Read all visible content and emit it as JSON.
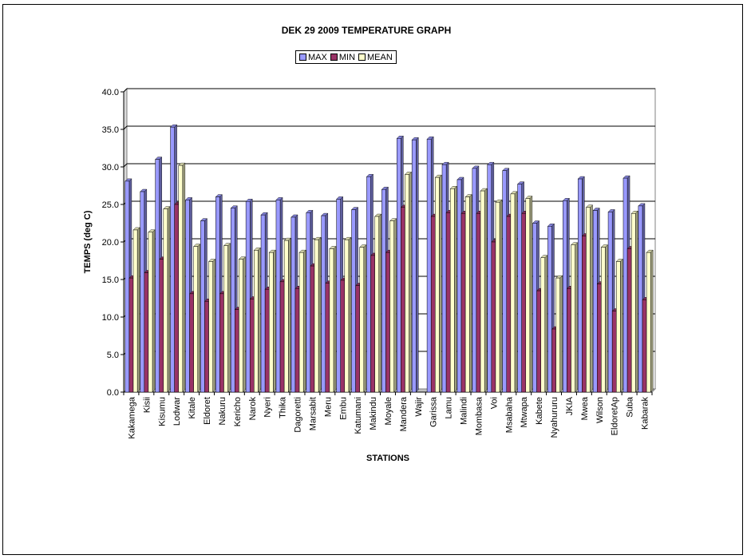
{
  "chart_data": {
    "type": "bar",
    "title": "DEK 29 2009 TEMPERATURE GRAPH",
    "xlabel": "STATIONS",
    "ylabel": "TEMPS (deg C)",
    "ylim": [
      0,
      40
    ],
    "yticks": [
      "0.0",
      "5.0",
      "10.0",
      "15.0",
      "20.0",
      "25.0",
      "30.0",
      "35.0",
      "40.0"
    ],
    "grid": true,
    "legend_position": "top-center",
    "categories": [
      "Kakamega",
      "Kisii",
      "Kisumu",
      "Lodwar",
      "Kitale",
      "Eldoret",
      "Nakuru",
      "Kericho",
      "Narok",
      "Nyeri",
      "Thika",
      "Dagoretti",
      "Marsabit",
      "Meru",
      "Embu",
      "Katumani",
      "Makindu",
      "Moyale",
      "Mandera",
      "Wajir",
      "Garissa",
      "Lamu",
      "Malindi",
      "Mombasa",
      "Voi",
      "Msabaha",
      "Mtwapa",
      "Kabete",
      "Nyahururu",
      "JKIA",
      "Mwea",
      "Wilson",
      "EldoretAp",
      "Suba",
      "Kabarak"
    ],
    "series": [
      {
        "name": "MAX",
        "color": "#9999ff",
        "values": [
          28.1,
          26.7,
          31.0,
          35.3,
          25.6,
          22.8,
          26.0,
          24.5,
          25.4,
          23.6,
          25.6,
          23.3,
          23.9,
          23.5,
          25.7,
          24.3,
          28.7,
          27.0,
          33.8,
          33.6,
          33.7,
          30.3,
          28.3,
          29.8,
          30.3,
          29.5,
          27.7,
          22.5,
          22.1,
          25.5,
          28.4,
          24.2,
          24.0,
          28.5,
          24.8
        ]
      },
      {
        "name": "MIN",
        "color": "#993366",
        "values": [
          15.2,
          15.9,
          17.7,
          25.0,
          13.1,
          12.1,
          13.1,
          11.0,
          12.4,
          13.7,
          14.7,
          13.8,
          16.8,
          14.5,
          14.9,
          14.2,
          18.2,
          18.6,
          24.6,
          0.0,
          23.4,
          23.9,
          23.8,
          23.8,
          20.0,
          23.4,
          23.8,
          13.5,
          8.4,
          13.8,
          20.8,
          14.4,
          10.8,
          19.1,
          12.3
        ]
      },
      {
        "name": "MEAN",
        "color": "#ffffcc",
        "values": [
          21.6,
          21.3,
          24.4,
          30.2,
          19.4,
          17.4,
          19.5,
          17.7,
          18.9,
          18.6,
          20.2,
          18.6,
          20.3,
          19.1,
          20.3,
          19.3,
          23.4,
          22.8,
          29.0,
          0.0,
          28.6,
          27.1,
          26.0,
          26.8,
          25.3,
          26.4,
          25.8,
          17.9,
          15.2,
          19.6,
          24.6,
          19.3,
          17.4,
          23.8,
          18.6
        ]
      }
    ]
  }
}
